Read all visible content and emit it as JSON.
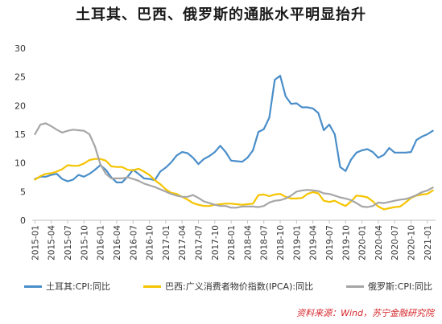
{
  "chart_data": {
    "type": "line",
    "title": "土耳其、巴西、俄罗斯的通胀水平明显抬升",
    "ylim": [
      0,
      30
    ],
    "yticks": [
      0,
      5,
      10,
      15,
      20,
      25,
      30
    ],
    "x": [
      "2015-01",
      "2015-02",
      "2015-03",
      "2015-04",
      "2015-05",
      "2015-06",
      "2015-07",
      "2015-08",
      "2015-09",
      "2015-10",
      "2015-11",
      "2015-12",
      "2016-01",
      "2016-02",
      "2016-03",
      "2016-04",
      "2016-05",
      "2016-06",
      "2016-07",
      "2016-08",
      "2016-09",
      "2016-10",
      "2016-11",
      "2016-12",
      "2017-01",
      "2017-02",
      "2017-03",
      "2017-04",
      "2017-05",
      "2017-06",
      "2017-07",
      "2017-08",
      "2017-09",
      "2017-10",
      "2017-11",
      "2017-12",
      "2018-01",
      "2018-02",
      "2018-03",
      "2018-04",
      "2018-05",
      "2018-06",
      "2018-07",
      "2018-08",
      "2018-09",
      "2018-10",
      "2018-11",
      "2018-12",
      "2019-01",
      "2019-02",
      "2019-03",
      "2019-04",
      "2019-05",
      "2019-06",
      "2019-07",
      "2019-08",
      "2019-09",
      "2019-10",
      "2019-11",
      "2019-12",
      "2020-01",
      "2020-02",
      "2020-03",
      "2020-04",
      "2020-05",
      "2020-06",
      "2020-07",
      "2020-08",
      "2020-09",
      "2020-10",
      "2020-11",
      "2020-12",
      "2021-01",
      "2021-02"
    ],
    "xticks": [
      "2015-01",
      "2015-04",
      "2015-07",
      "2015-10",
      "2016-01",
      "2016-04",
      "2016-07",
      "2016-10",
      "2017-01",
      "2017-04",
      "2017-07",
      "2017-10",
      "2018-01",
      "2018-04",
      "2018-07",
      "2018-10",
      "2019-01",
      "2019-04",
      "2019-07",
      "2019-10",
      "2020-01",
      "2020-04",
      "2020-07",
      "2020-10",
      "2021-01"
    ],
    "series": [
      {
        "name": "土耳其:CPI:同比",
        "color": "#4a8ec9",
        "values": [
          7.2,
          7.6,
          7.6,
          7.9,
          8.1,
          7.2,
          6.8,
          7.1,
          7.9,
          7.6,
          8.1,
          8.8,
          9.6,
          8.8,
          7.5,
          6.6,
          6.6,
          7.6,
          8.8,
          8.1,
          7.3,
          7.2,
          7.0,
          8.5,
          9.2,
          10.1,
          11.3,
          11.9,
          11.7,
          10.9,
          9.8,
          10.7,
          11.2,
          11.9,
          13.0,
          11.9,
          10.4,
          10.3,
          10.2,
          10.9,
          12.2,
          15.4,
          15.9,
          17.9,
          24.5,
          25.2,
          21.6,
          20.3,
          20.4,
          19.7,
          19.7,
          19.5,
          18.7,
          15.7,
          16.7,
          15.0,
          9.3,
          8.6,
          10.6,
          11.8,
          12.2,
          12.4,
          11.9,
          10.9,
          11.4,
          12.6,
          11.8,
          11.8,
          11.8,
          11.9,
          14.0,
          14.6,
          15.0,
          15.6
        ]
      },
      {
        "name": "巴西:广义消费者物价指数(IPCA):同比",
        "color": "#f5c400",
        "values": [
          7.1,
          7.7,
          8.1,
          8.2,
          8.5,
          8.9,
          9.6,
          9.5,
          9.5,
          9.9,
          10.5,
          10.7,
          10.7,
          10.4,
          9.4,
          9.3,
          9.3,
          8.8,
          8.7,
          9.0,
          8.5,
          7.9,
          7.0,
          6.3,
          5.4,
          4.8,
          4.6,
          4.1,
          3.6,
          3.0,
          2.7,
          2.5,
          2.5,
          2.7,
          2.8,
          2.9,
          2.9,
          2.8,
          2.7,
          2.8,
          2.9,
          4.4,
          4.5,
          4.2,
          4.5,
          4.6,
          4.1,
          3.8,
          3.8,
          3.9,
          4.6,
          4.9,
          4.7,
          3.4,
          3.2,
          3.4,
          2.9,
          2.5,
          3.3,
          4.3,
          4.2,
          4.0,
          3.3,
          2.4,
          1.9,
          2.1,
          2.3,
          2.4,
          3.1,
          3.9,
          4.3,
          4.5,
          4.6,
          5.2
        ]
      },
      {
        "name": "俄罗斯:CPI:同比",
        "color": "#a6a6a6",
        "values": [
          15.0,
          16.7,
          16.9,
          16.4,
          15.8,
          15.3,
          15.6,
          15.8,
          15.7,
          15.6,
          15.0,
          12.9,
          9.8,
          8.1,
          7.3,
          7.3,
          7.3,
          7.5,
          7.2,
          6.9,
          6.4,
          6.1,
          5.8,
          5.4,
          5.0,
          4.6,
          4.3,
          4.1,
          4.1,
          4.4,
          3.9,
          3.3,
          3.0,
          2.7,
          2.5,
          2.5,
          2.2,
          2.2,
          2.4,
          2.4,
          2.4,
          2.3,
          2.5,
          3.1,
          3.4,
          3.5,
          3.8,
          4.3,
          5.0,
          5.2,
          5.3,
          5.2,
          5.1,
          4.7,
          4.6,
          4.3,
          4.0,
          3.8,
          3.5,
          3.0,
          2.4,
          2.3,
          2.5,
          3.1,
          3.0,
          3.2,
          3.4,
          3.6,
          3.7,
          4.0,
          4.4,
          4.9,
          5.2,
          5.7
        ]
      }
    ]
  },
  "source": "资料来源：Wind，苏宁金融研究院"
}
